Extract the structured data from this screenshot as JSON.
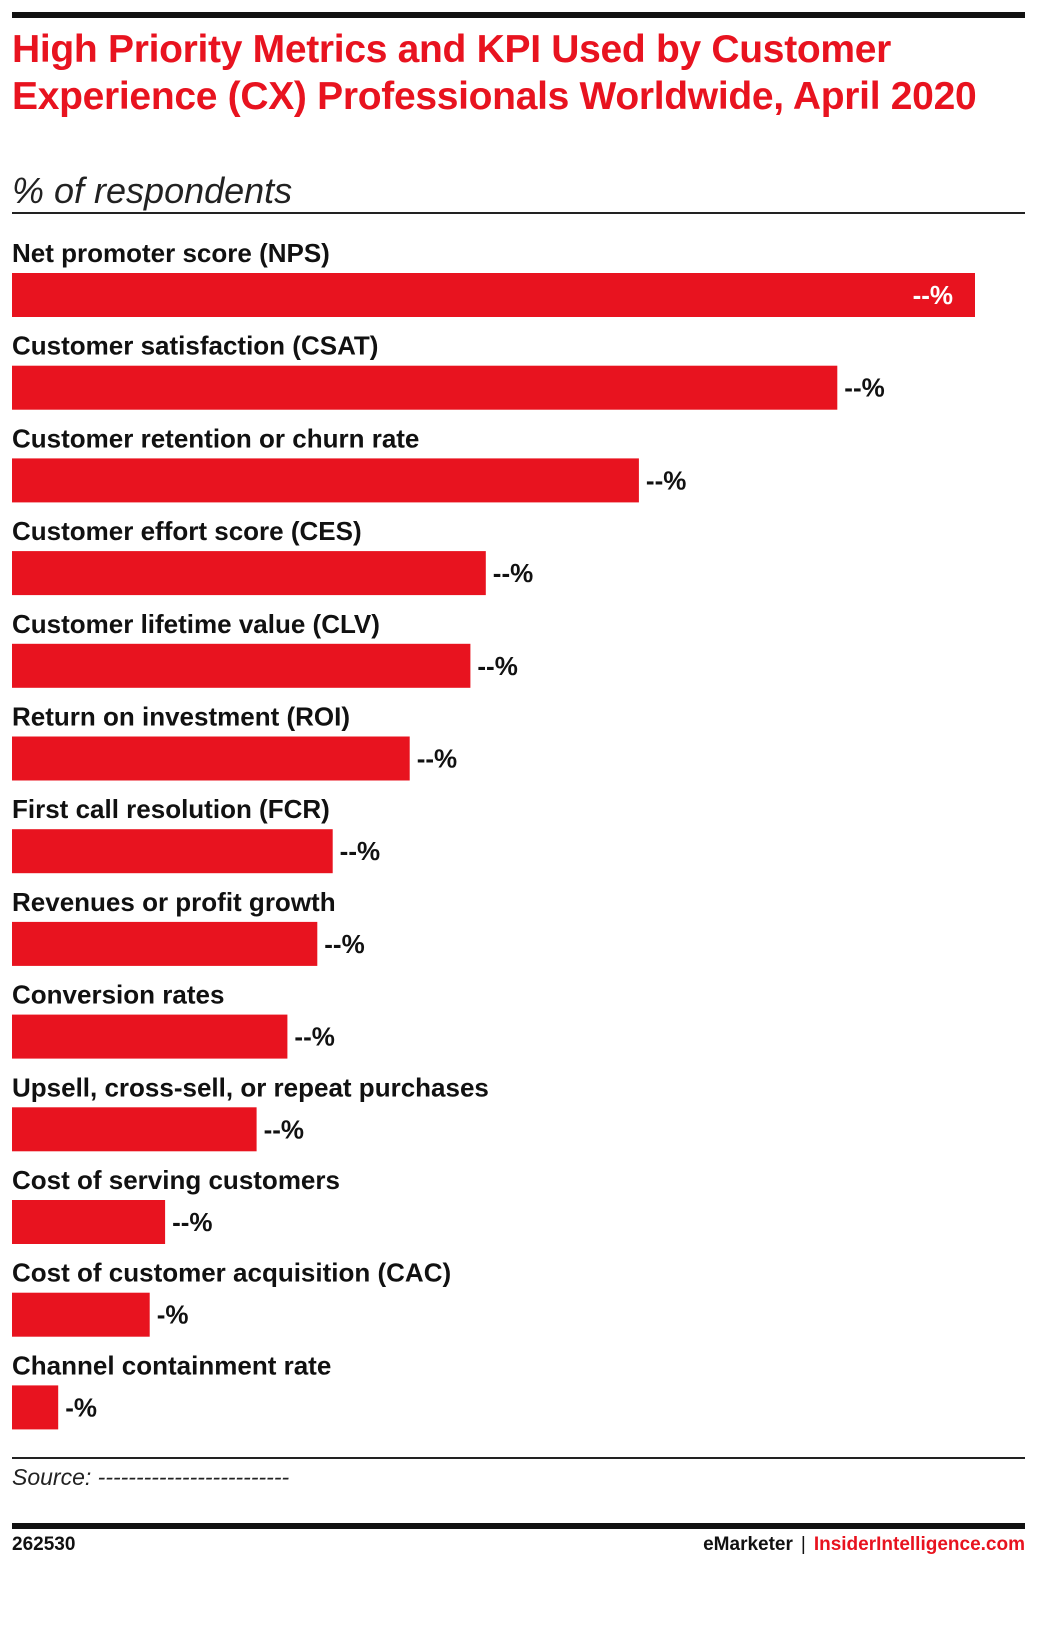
{
  "header": {
    "title": "High Priority Metrics and KPI Used by Customer Experience (CX) Professionals Worldwide, April 2020",
    "subtitle": "% of respondents"
  },
  "chart_data": {
    "type": "bar",
    "orientation": "horizontal",
    "title": "High Priority Metrics and KPI Used by Customer Experience (CX) Professionals Worldwide, April 2020",
    "subtitle": "% of respondents",
    "categories": [
      "Net promoter score (NPS)",
      "Customer satisfaction (CSAT)",
      "Customer retention or churn rate",
      "Customer effort score (CES)",
      "Customer lifetime value (CLV)",
      "Return on investment (ROI)",
      "First call resolution (FCR)",
      "Revenues or profit growth",
      "Conversion rates",
      "Upsell, cross-sell, or repeat purchases",
      "Cost of serving customers",
      "Cost of customer acquisition (CAC)",
      "Channel containment rate"
    ],
    "values": [
      100,
      85.7,
      65.1,
      49.2,
      47.6,
      41.3,
      33.3,
      31.7,
      28.6,
      25.4,
      15.9,
      14.3,
      4.8
    ],
    "value_labels": [
      "--%",
      "--%",
      "--%",
      "--%",
      "--%",
      "--%",
      "--%",
      "--%",
      "--%",
      "--%",
      "--%",
      "-%",
      "-%"
    ],
    "xlim": [
      0,
      100
    ],
    "grid": false,
    "legend": "none",
    "bar_color": "#e8131f"
  },
  "footer": {
    "source": "Source: -------------------------",
    "chart_id": "262530",
    "brand": "eMarketer",
    "separator": "|",
    "site": "InsiderIntelligence.com"
  },
  "colors": {
    "accent": "#e8131f",
    "text": "#111111",
    "background": "#ffffff"
  }
}
